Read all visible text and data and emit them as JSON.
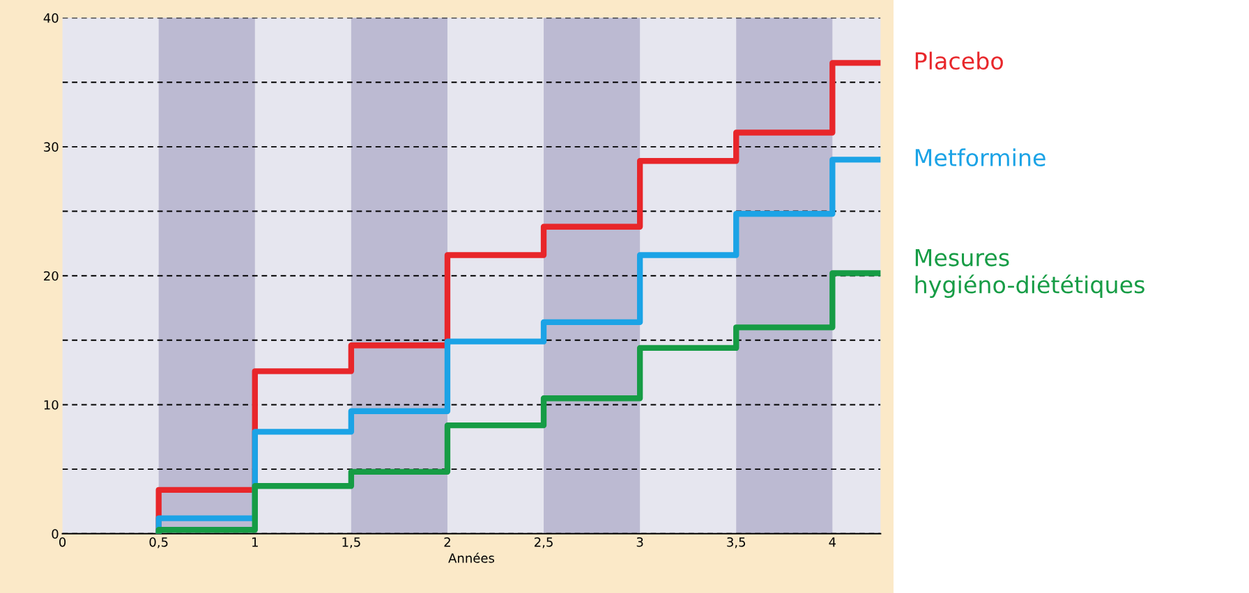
{
  "chart_data": {
    "type": "step",
    "xlabel": "Années",
    "xlim": [
      0,
      4.25
    ],
    "ylim": [
      0,
      40
    ],
    "xticks": [
      0,
      {
        "value": 0.5,
        "label": "0,5"
      },
      1,
      {
        "value": 1.5,
        "label": "1,5"
      },
      2,
      {
        "value": 2.5,
        "label": "2,5"
      },
      3,
      {
        "value": 3.5,
        "label": "3,5"
      },
      4
    ],
    "yticks": [
      0,
      {
        "value": 5,
        "label": null
      },
      10,
      {
        "value": 15,
        "label": null
      },
      20,
      {
        "value": 25,
        "label": null
      },
      30,
      {
        "value": 35,
        "label": null
      },
      40
    ],
    "grid": "y",
    "line_style": "solid",
    "marker": "none",
    "legend": false,
    "bands": [
      {
        "axis": "x",
        "from": 0.5,
        "to": 1,
        "color": "#bcbad2"
      },
      {
        "axis": "x",
        "from": 1.5,
        "to": 2,
        "color": "#bcbad2"
      },
      {
        "axis": "x",
        "from": 2.5,
        "to": 3,
        "color": "#bcbad2"
      },
      {
        "axis": "x",
        "from": 3.5,
        "to": 4,
        "color": "#bcbad2"
      }
    ],
    "series": [
      {
        "name": "Placebo",
        "color": "#e8262a",
        "x": [
          0.5,
          0.5,
          1,
          1.5,
          2,
          2.5,
          3,
          3.5,
          4,
          4.25
        ],
        "values": [
          0,
          3.4,
          12.6,
          14.6,
          21.6,
          23.8,
          28.9,
          31.1,
          36.5,
          36.5
        ]
      },
      {
        "name": "Metformine",
        "color": "#1ba3e6",
        "x": [
          0.5,
          0.5,
          1,
          1.5,
          2,
          2.5,
          3,
          3.5,
          4,
          4.25
        ],
        "values": [
          0,
          1.2,
          7.9,
          9.5,
          14.9,
          16.4,
          21.6,
          24.8,
          29,
          29
        ]
      },
      {
        "name": "Mesures hygiéno-diététiques",
        "color": "#169c45",
        "x": [
          0.5,
          0.5,
          1,
          1.5,
          2,
          2.5,
          3,
          3.5,
          4,
          4.25
        ],
        "values": [
          0,
          0.3,
          3.7,
          4.8,
          8.4,
          10.5,
          14.4,
          16,
          20.2,
          20.2
        ]
      }
    ]
  }
}
